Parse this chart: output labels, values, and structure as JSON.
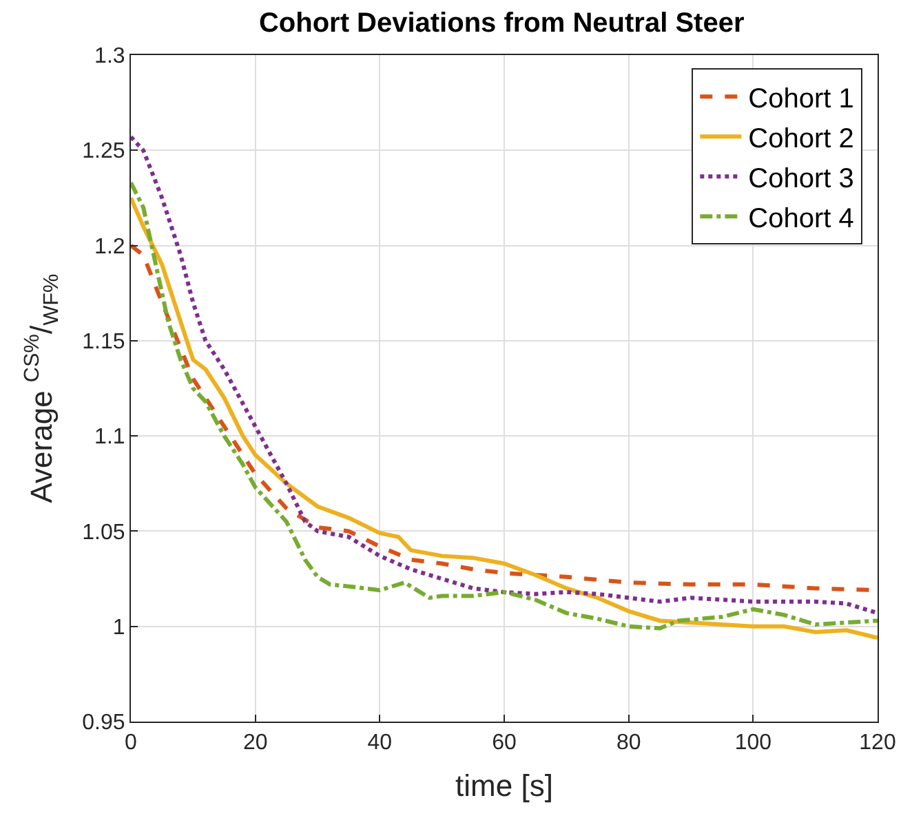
{
  "chart_data": {
    "type": "line",
    "title": "Cohort Deviations from Neutral Steer",
    "xlabel": "time [s]",
    "ylabel": "Average $^{CS%}$/$_{WF%}$",
    "xlim": [
      0,
      120
    ],
    "xticks": [
      0,
      20,
      40,
      60,
      80,
      100,
      120
    ],
    "ylim": [
      0.95,
      1.3
    ],
    "yticks": [
      0.95,
      1,
      1.05,
      1.1,
      1.15,
      1.2,
      1.25,
      1.3
    ],
    "grid": true,
    "legend": "top right",
    "marker": "none",
    "series": [
      {
        "name": "Cohort 1",
        "color": "#d95319",
        "line_style": "dashed",
        "x": [
          0,
          2,
          5,
          10,
          15,
          20,
          25,
          30,
          35,
          40,
          45,
          50,
          55,
          60,
          70,
          80,
          90,
          100,
          110,
          120
        ],
        "values": [
          1.2,
          1.195,
          1.17,
          1.13,
          1.105,
          1.08,
          1.062,
          1.052,
          1.05,
          1.042,
          1.035,
          1.033,
          1.03,
          1.028,
          1.026,
          1.023,
          1.022,
          1.022,
          1.02,
          1.019
        ]
      },
      {
        "name": "Cohort 2",
        "color": "#edb120",
        "line_style": "solid",
        "x": [
          0,
          2,
          5,
          8,
          10,
          12,
          15,
          18,
          20,
          25,
          30,
          35,
          40,
          43,
          45,
          50,
          55,
          60,
          65,
          70,
          75,
          80,
          85,
          90,
          95,
          100,
          105,
          110,
          115,
          120
        ],
        "values": [
          1.225,
          1.21,
          1.19,
          1.16,
          1.14,
          1.135,
          1.12,
          1.1,
          1.09,
          1.075,
          1.063,
          1.057,
          1.049,
          1.047,
          1.04,
          1.037,
          1.036,
          1.033,
          1.027,
          1.02,
          1.015,
          1.008,
          1.003,
          1.002,
          1.001,
          1.0,
          1.0,
          0.997,
          0.998,
          0.994
        ]
      },
      {
        "name": "Cohort 3",
        "color": "#7e2f8e",
        "line_style": "dotted",
        "x": [
          0,
          2,
          5,
          8,
          10,
          12,
          15,
          20,
          25,
          28,
          30,
          35,
          40,
          45,
          50,
          55,
          60,
          65,
          70,
          75,
          80,
          85,
          90,
          100,
          110,
          115,
          120
        ],
        "values": [
          1.257,
          1.25,
          1.225,
          1.195,
          1.17,
          1.15,
          1.135,
          1.105,
          1.075,
          1.055,
          1.05,
          1.047,
          1.037,
          1.03,
          1.025,
          1.02,
          1.018,
          1.017,
          1.018,
          1.017,
          1.015,
          1.013,
          1.015,
          1.013,
          1.013,
          1.012,
          1.007
        ]
      },
      {
        "name": "Cohort 4",
        "color": "#77ac30",
        "line_style": "dashdot",
        "x": [
          0,
          2,
          4,
          6,
          8,
          10,
          12,
          15,
          18,
          20,
          25,
          28,
          30,
          32,
          35,
          40,
          44,
          48,
          50,
          55,
          60,
          65,
          70,
          75,
          80,
          85,
          88,
          95,
          100,
          105,
          110,
          115,
          120
        ],
        "values": [
          1.233,
          1.22,
          1.19,
          1.16,
          1.14,
          1.125,
          1.118,
          1.1,
          1.085,
          1.073,
          1.055,
          1.035,
          1.026,
          1.022,
          1.021,
          1.019,
          1.023,
          1.015,
          1.016,
          1.016,
          1.018,
          1.014,
          1.007,
          1.004,
          1.0,
          0.999,
          1.003,
          1.005,
          1.009,
          1.006,
          1.001,
          1.002,
          1.003
        ]
      }
    ]
  }
}
